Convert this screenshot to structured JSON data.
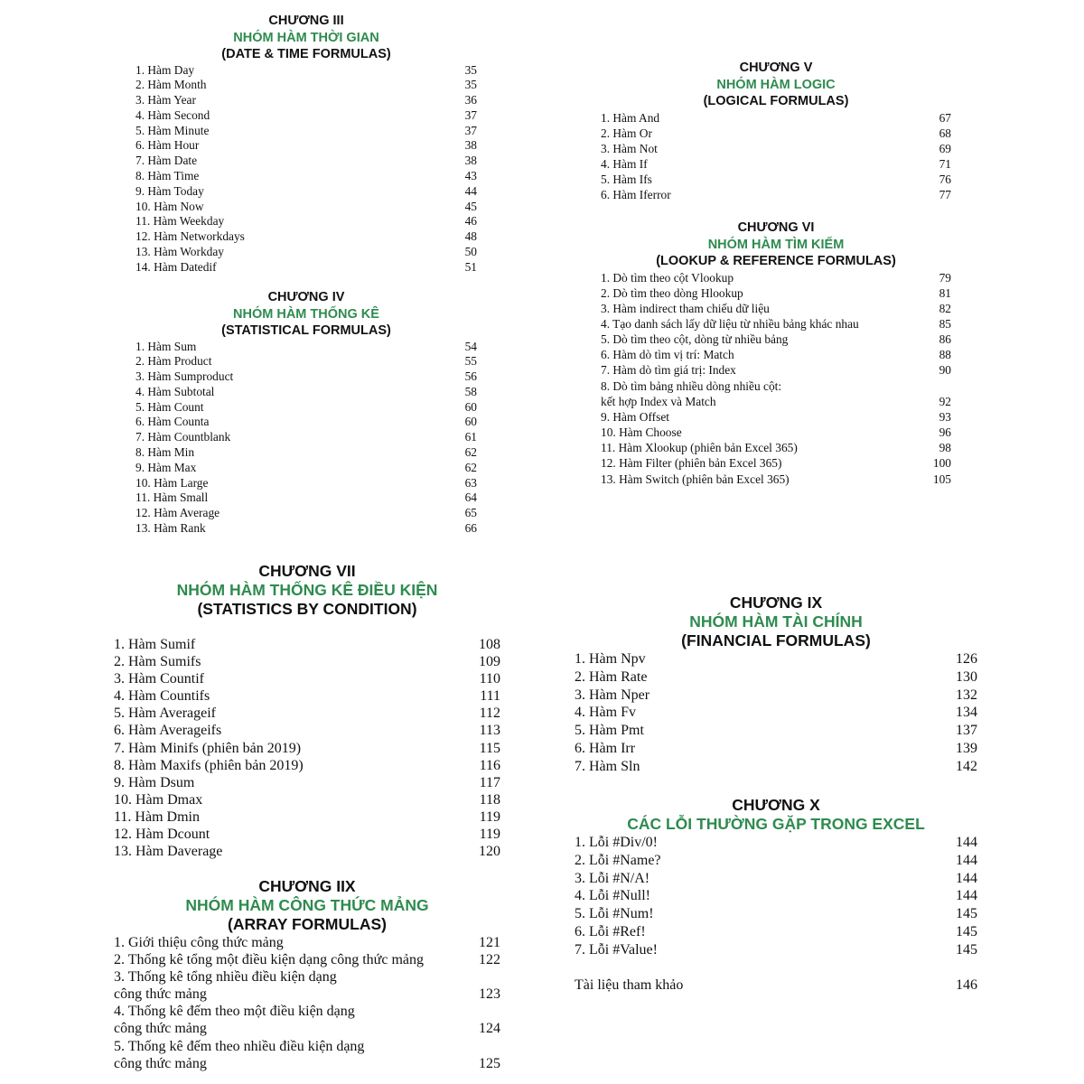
{
  "accent_color": "#2e8b4e",
  "sections": [
    {
      "id": "s3",
      "size": "small",
      "heading": [
        "CHƯƠNG III",
        "NHÓM HÀM THỜI GIAN",
        "(DATE & TIME FORMULAS)"
      ],
      "items": [
        {
          "lines": [
            "1. Hàm Day"
          ],
          "page": "35"
        },
        {
          "lines": [
            "2. Hàm Month"
          ],
          "page": "35"
        },
        {
          "lines": [
            "3. Hàm Year"
          ],
          "page": "36"
        },
        {
          "lines": [
            "4. Hàm Second"
          ],
          "page": "37"
        },
        {
          "lines": [
            "5. Hàm Minute"
          ],
          "page": "37"
        },
        {
          "lines": [
            "6. Hàm Hour"
          ],
          "page": "38"
        },
        {
          "lines": [
            "7. Hàm Date"
          ],
          "page": "38"
        },
        {
          "lines": [
            "8. Hàm Time"
          ],
          "page": "43"
        },
        {
          "lines": [
            "9. Hàm Today"
          ],
          "page": "44"
        },
        {
          "lines": [
            "10. Hàm Now"
          ],
          "page": "45"
        },
        {
          "lines": [
            "11. Hàm Weekday"
          ],
          "page": "46"
        },
        {
          "lines": [
            "12. Hàm Networkdays"
          ],
          "page": "48"
        },
        {
          "lines": [
            "13. Hàm Workday"
          ],
          "page": "50"
        },
        {
          "lines": [
            "14. Hàm Datedif"
          ],
          "page": "51"
        }
      ]
    },
    {
      "id": "s4",
      "size": "small",
      "heading": [
        "CHƯƠNG IV",
        "NHÓM HÀM THỐNG KÊ",
        "(STATISTICAL FORMULAS)"
      ],
      "items": [
        {
          "lines": [
            "1. Hàm Sum"
          ],
          "page": "54"
        },
        {
          "lines": [
            "2. Hàm Product"
          ],
          "page": "55"
        },
        {
          "lines": [
            "3. Hàm Sumproduct"
          ],
          "page": "56"
        },
        {
          "lines": [
            "4. Hàm Subtotal"
          ],
          "page": "58"
        },
        {
          "lines": [
            "5. Hàm Count"
          ],
          "page": "60"
        },
        {
          "lines": [
            "6. Hàm Counta"
          ],
          "page": "60"
        },
        {
          "lines": [
            "7. Hàm Countblank"
          ],
          "page": "61"
        },
        {
          "lines": [
            "8. Hàm Min"
          ],
          "page": "62"
        },
        {
          "lines": [
            "9. Hàm Max"
          ],
          "page": "62"
        },
        {
          "lines": [
            "10. Hàm Large"
          ],
          "page": "63"
        },
        {
          "lines": [
            "11. Hàm Small"
          ],
          "page": "64"
        },
        {
          "lines": [
            "12. Hàm Average"
          ],
          "page": "65"
        },
        {
          "lines": [
            "13. Hàm Rank"
          ],
          "page": "66"
        }
      ]
    },
    {
      "id": "s5",
      "size": "small",
      "heading": [
        "CHƯƠNG V",
        "NHÓM HÀM LOGIC",
        "(LOGICAL FORMULAS)"
      ],
      "items": [
        {
          "lines": [
            "1. Hàm And"
          ],
          "page": "67"
        },
        {
          "lines": [
            "2. Hàm Or"
          ],
          "page": "68"
        },
        {
          "lines": [
            "3. Hàm Not"
          ],
          "page": "69"
        },
        {
          "lines": [
            "4. Hàm If"
          ],
          "page": "71"
        },
        {
          "lines": [
            "5. Hàm Ifs"
          ],
          "page": "76"
        },
        {
          "lines": [
            "6. Hàm Iferror"
          ],
          "page": "77"
        }
      ]
    },
    {
      "id": "s6",
      "size": "small",
      "heading": [
        "CHƯƠNG VI",
        "NHÓM HÀM TÌM KIẾM",
        "(LOOKUP & REFERENCE FORMULAS)"
      ],
      "items": [
        {
          "lines": [
            "1. Dò tìm theo cột Vlookup"
          ],
          "page": "79"
        },
        {
          "lines": [
            "2. Dò tìm theo dòng Hlookup"
          ],
          "page": "81"
        },
        {
          "lines": [
            "3. Hàm indirect tham chiếu dữ liệu"
          ],
          "page": "82"
        },
        {
          "lines": [
            "4. Tạo danh sách lấy dữ liệu từ nhiều bảng khác nhau"
          ],
          "page": "85"
        },
        {
          "lines": [
            "5. Dò tìm theo cột, dòng từ nhiều bảng"
          ],
          "page": "86"
        },
        {
          "lines": [
            "6. Hàm dò tìm vị trí: Match"
          ],
          "page": "88"
        },
        {
          "lines": [
            "7. Hàm dò tìm giá trị: Index"
          ],
          "page": "90"
        },
        {
          "lines": [
            "8. Dò tìm bảng nhiều dòng nhiều cột:",
            "kết hợp Index và Match"
          ],
          "page": "92"
        },
        {
          "lines": [
            "9. Hàm Offset"
          ],
          "page": "93"
        },
        {
          "lines": [
            "10. Hàm Choose"
          ],
          "page": "96"
        },
        {
          "lines": [
            "11. Hàm Xlookup (phiên bản Excel 365)"
          ],
          "page": "98"
        },
        {
          "lines": [
            "12. Hàm Filter (phiên bản Excel 365)"
          ],
          "page": "100"
        },
        {
          "lines": [
            "13. Hàm Switch (phiên bản Excel 365)"
          ],
          "page": "105"
        }
      ]
    },
    {
      "id": "s7",
      "size": "big",
      "heading": [
        "CHƯƠNG VII",
        "NHÓM HÀM THỐNG KÊ ĐIỀU KIỆN",
        "(STATISTICS BY CONDITION)"
      ],
      "items": [
        {
          "lines": [
            "1. Hàm Sumif"
          ],
          "page": "108"
        },
        {
          "lines": [
            "2. Hàm Sumifs"
          ],
          "page": "109"
        },
        {
          "lines": [
            "3. Hàm Countif"
          ],
          "page": "110"
        },
        {
          "lines": [
            "4. Hàm Countifs"
          ],
          "page": "111"
        },
        {
          "lines": [
            "5. Hàm Averageif"
          ],
          "page": "112"
        },
        {
          "lines": [
            "6. Hàm Averageifs"
          ],
          "page": "113"
        },
        {
          "lines": [
            "7. Hàm Minifs (phiên bản 2019)"
          ],
          "page": "115"
        },
        {
          "lines": [
            "8. Hàm Maxifs (phiên bản 2019)"
          ],
          "page": "116"
        },
        {
          "lines": [
            "9. Hàm Dsum"
          ],
          "page": "117"
        },
        {
          "lines": [
            "10. Hàm Dmax"
          ],
          "page": "118"
        },
        {
          "lines": [
            "11. Hàm Dmin"
          ],
          "page": "119"
        },
        {
          "lines": [
            "12. Hàm Dcount"
          ],
          "page": "119"
        },
        {
          "lines": [
            "13. Hàm Daverage"
          ],
          "page": "120"
        }
      ]
    },
    {
      "id": "s8",
      "size": "big",
      "heading": [
        "CHƯƠNG IIX",
        "NHÓM HÀM CÔNG THỨC MẢNG",
        "(ARRAY FORMULAS)"
      ],
      "items": [
        {
          "lines": [
            "1. Giới thiệu công thức mảng"
          ],
          "page": "121"
        },
        {
          "lines": [
            "2. Thống kê tổng một điều kiện dạng công thức mảng"
          ],
          "page": "122"
        },
        {
          "lines": [
            "3. Thống kê tổng nhiều điều kiện dạng",
            "công thức mảng"
          ],
          "page": "123"
        },
        {
          "lines": [
            "4. Thống kê đếm theo một điều kiện dạng",
            "công thức mảng"
          ],
          "page": "124"
        },
        {
          "lines": [
            "5. Thống kê đếm theo nhiều điều kiện dạng",
            "công thức mảng"
          ],
          "page": "125"
        }
      ]
    },
    {
      "id": "s9",
      "size": "big",
      "heading": [
        "CHƯƠNG IX",
        "NHÓM HÀM TÀI CHÍNH",
        "(FINANCIAL FORMULAS)"
      ],
      "items": [
        {
          "lines": [
            "1. Hàm Npv"
          ],
          "page": "126"
        },
        {
          "lines": [
            "2. Hàm Rate"
          ],
          "page": "130"
        },
        {
          "lines": [
            "3. Hàm Nper"
          ],
          "page": "132"
        },
        {
          "lines": [
            "4. Hàm Fv"
          ],
          "page": "134"
        },
        {
          "lines": [
            "5. Hàm Pmt"
          ],
          "page": "137"
        },
        {
          "lines": [
            "6. Hàm Irr"
          ],
          "page": "139"
        },
        {
          "lines": [
            "7. Hàm Sln"
          ],
          "page": "142"
        }
      ]
    },
    {
      "id": "s10",
      "size": "big",
      "heading": [
        "CHƯƠNG X",
        "CÁC LỖI THƯỜNG GẶP TRONG EXCEL"
      ],
      "items": [
        {
          "lines": [
            "1. Lỗi #Div/0!"
          ],
          "page": "144"
        },
        {
          "lines": [
            "2. Lỗi #Name?"
          ],
          "page": "144"
        },
        {
          "lines": [
            "3. Lỗi #N/A!"
          ],
          "page": "144"
        },
        {
          "lines": [
            "4. Lỗi #Null!"
          ],
          "page": "144"
        },
        {
          "lines": [
            "5. Lỗi #Num!"
          ],
          "page": "145"
        },
        {
          "lines": [
            "6. Lỗi #Ref!"
          ],
          "page": "145"
        },
        {
          "lines": [
            "7. Lỗi #Value!"
          ],
          "page": "145"
        }
      ],
      "extra": {
        "lines": [
          "Tài liệu tham khảo"
        ],
        "page": "146"
      }
    }
  ]
}
